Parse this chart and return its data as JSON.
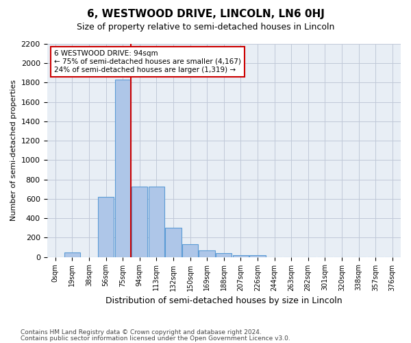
{
  "title1": "6, WESTWOOD DRIVE, LINCOLN, LN6 0HJ",
  "title2": "Size of property relative to semi-detached houses in Lincoln",
  "xlabel": "Distribution of semi-detached houses by size in Lincoln",
  "ylabel": "Number of semi-detached properties",
  "bin_labels": [
    "0sqm",
    "19sqm",
    "38sqm",
    "56sqm",
    "75sqm",
    "94sqm",
    "113sqm",
    "132sqm",
    "150sqm",
    "169sqm",
    "188sqm",
    "207sqm",
    "226sqm",
    "244sqm",
    "263sqm",
    "282sqm",
    "301sqm",
    "320sqm",
    "338sqm",
    "357sqm",
    "376sqm"
  ],
  "bar_heights": [
    0,
    50,
    0,
    620,
    1830,
    730,
    730,
    300,
    130,
    65,
    40,
    20,
    20,
    0,
    0,
    0,
    0,
    0,
    0,
    0,
    0
  ],
  "bar_color": "#aec6e8",
  "bar_edge_color": "#5b9bd5",
  "vline_x_index": 5,
  "vline_color": "#cc0000",
  "annotation_box_text": "6 WESTWOOD DRIVE: 94sqm\n← 75% of semi-detached houses are smaller (4,167)\n24% of semi-detached houses are larger (1,319) →",
  "annotation_box_color": "#cc0000",
  "annotation_text_size": 7.5,
  "ylim": [
    0,
    2200
  ],
  "yticks": [
    0,
    200,
    400,
    600,
    800,
    1000,
    1200,
    1400,
    1600,
    1800,
    2000,
    2200
  ],
  "footer1": "Contains HM Land Registry data © Crown copyright and database right 2024.",
  "footer2": "Contains public sector information licensed under the Open Government Licence v3.0.",
  "axes_background_color": "#e8eef5",
  "fig_background_color": "#ffffff",
  "grid_color": "#c0c8d8"
}
